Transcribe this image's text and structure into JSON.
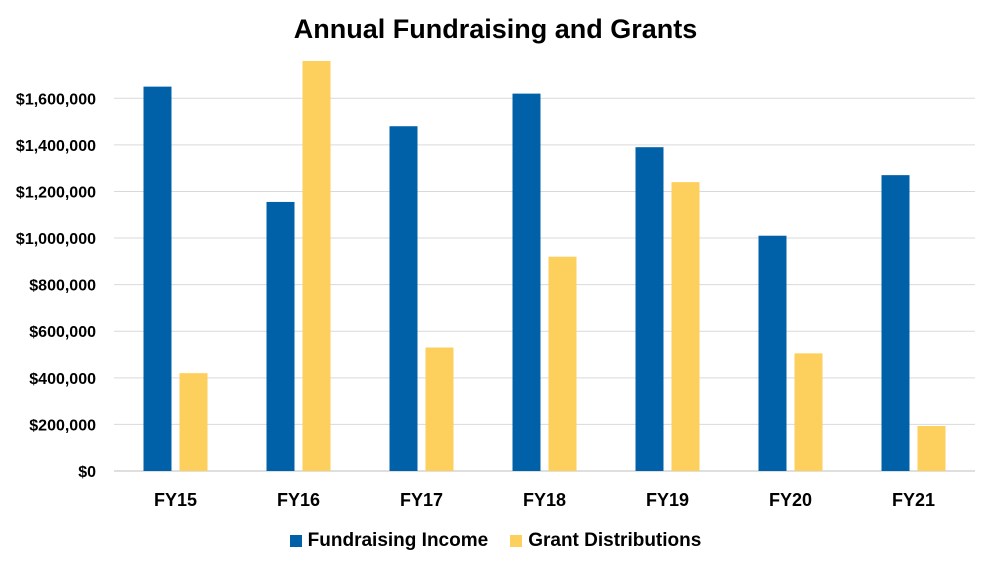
{
  "chart_data": {
    "type": "bar",
    "title": "Annual Fundraising and Grants",
    "xlabel": "",
    "ylabel": "",
    "categories": [
      "FY15",
      "FY16",
      "FY17",
      "FY18",
      "FY19",
      "FY20",
      "FY21"
    ],
    "series": [
      {
        "name": "Fundraising Income",
        "color": "#0061A8",
        "values": [
          1650000,
          1155000,
          1480000,
          1620000,
          1390000,
          1010000,
          1270000
        ]
      },
      {
        "name": "Grant Distributions",
        "color": "#FDCF5C",
        "values": [
          420000,
          1760000,
          530000,
          920000,
          1240000,
          505000,
          193000
        ]
      }
    ],
    "ylim": [
      0,
      1760000
    ],
    "yticks": [
      0,
      200000,
      400000,
      600000,
      800000,
      1000000,
      1200000,
      1400000,
      1600000
    ],
    "ytick_labels": [
      "$0",
      "$200,000",
      "$400,000",
      "$600,000",
      "$800,000",
      "$1,000,000",
      "$1,200,000",
      "$1,400,000",
      "$1,600,000"
    ],
    "grid": true,
    "legend_position": "bottom"
  }
}
